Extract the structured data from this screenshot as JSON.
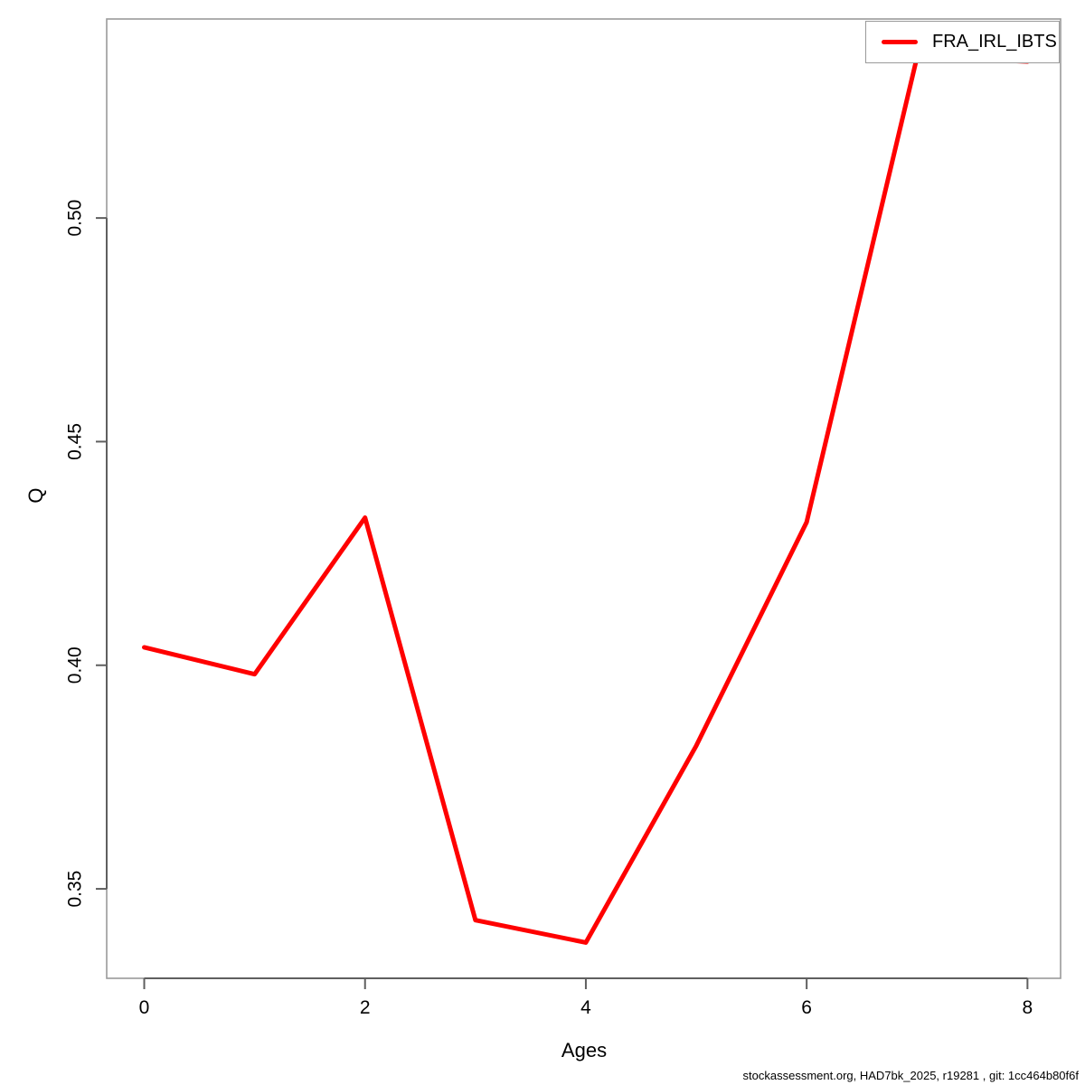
{
  "window": {
    "background": "#ffffff"
  },
  "chart_data": {
    "type": "line",
    "title": "",
    "xlabel": "Ages",
    "ylabel": "Q",
    "x": [
      0,
      1,
      2,
      3,
      4,
      5,
      6,
      7,
      8
    ],
    "series": [
      {
        "name": "FRA_IRL_IBTS",
        "color": "#ff0000",
        "line_width": 5,
        "values": [
          0.404,
          0.398,
          0.433,
          0.343,
          0.338,
          0.382,
          0.432,
          0.536,
          0.535
        ]
      }
    ],
    "xlim": [
      -0.34,
      8.3
    ],
    "ylim": [
      0.33,
      0.5445
    ],
    "x_ticks": [
      0,
      2,
      4,
      6,
      8
    ],
    "x_tick_labels": [
      "0",
      "2",
      "4",
      "6",
      "8"
    ],
    "y_ticks": [
      0.35,
      0.4,
      0.45,
      0.5
    ],
    "y_tick_labels": [
      "0.35",
      "0.40",
      "0.45",
      "0.50"
    ],
    "grid": false,
    "legend_position": "top-right"
  },
  "legend": {
    "label": "FRA_IRL_IBTS",
    "line_color": "#ff0000"
  },
  "footer": {
    "text": "stockassessment.org, HAD7bk_2025, r19281 , git: 1cc464b80f6f"
  },
  "style": {
    "axis_color": "#5f5f5f",
    "box_color": "#9a9a9a",
    "text_color": "#000000",
    "tick_font_size": 21,
    "plot_background": "#ffffff"
  }
}
